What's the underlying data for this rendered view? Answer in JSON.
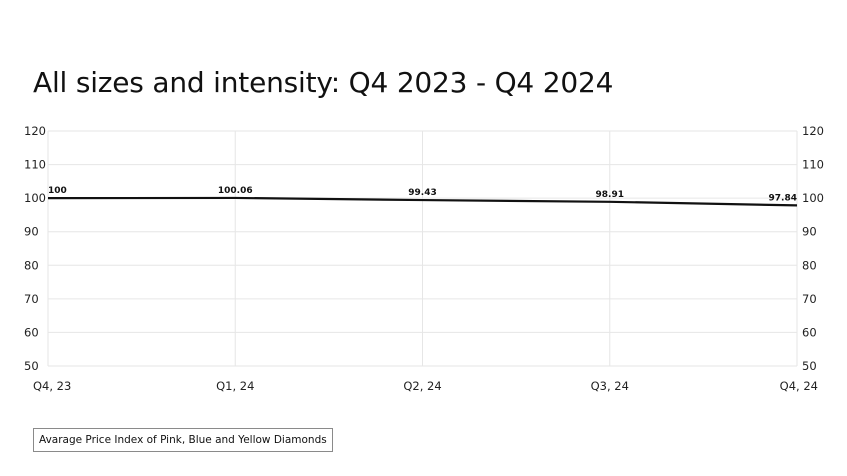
{
  "chart_data": {
    "type": "line",
    "title": "All sizes and intensity: Q4 2023 - Q4 2024",
    "categories": [
      "Q4, 23",
      "Q1, 24",
      "Q2, 24",
      "Q3, 24",
      "Q4, 24"
    ],
    "series": [
      {
        "name": "Avarage Price Index of Pink, Blue and Yellow Diamonds",
        "values": [
          100,
          100.06,
          99.43,
          98.91,
          97.84
        ],
        "labels": [
          "100",
          "100.06",
          "99.43",
          "98.91",
          "97.84"
        ],
        "color": "#111111"
      }
    ],
    "ylim": [
      50,
      120
    ],
    "yticks": [
      120,
      110,
      100,
      90,
      80,
      70,
      60,
      50
    ],
    "secondary_yaxis": true,
    "grid": true,
    "legend_position": "bottom-left"
  },
  "colors": {
    "line": "#111111",
    "grid": "#e6e6e6",
    "text": "#111111"
  }
}
